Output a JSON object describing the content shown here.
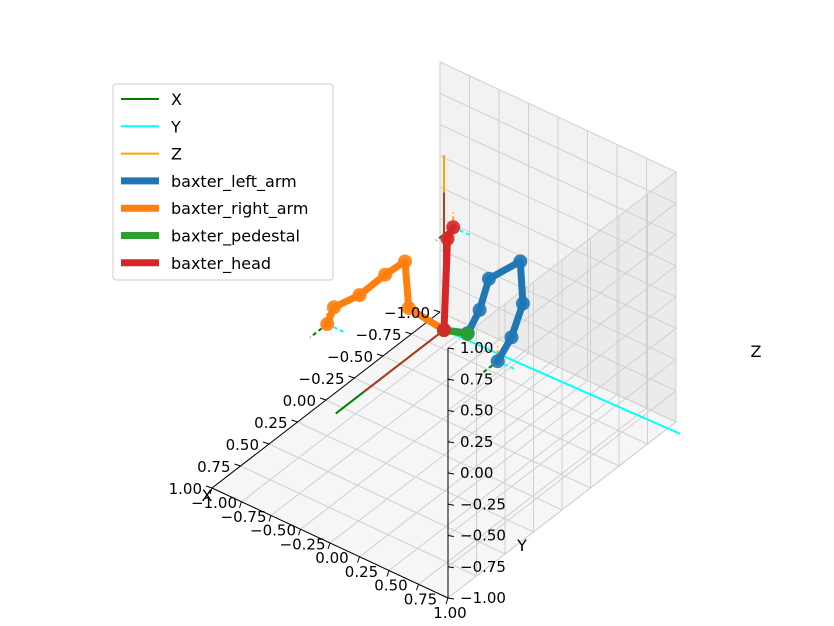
{
  "chart_data": {
    "type": "line",
    "projection": "3d",
    "title": "",
    "xlabel": "X",
    "ylabel": "Y",
    "zlabel": "Z",
    "xlim": [
      -1.0,
      1.0
    ],
    "ylim": [
      -1.0,
      1.0
    ],
    "zlim": [
      -1.0,
      1.0
    ],
    "grid": true,
    "legend_position": "upper-left",
    "x_ticks": [
      "−1.00",
      "−0.75",
      "−0.50",
      "−0.25",
      "0.00",
      "0.25",
      "0.50",
      "0.75",
      "1.00"
    ],
    "y_ticks": [
      "−1.00",
      "−0.75",
      "−0.50",
      "−0.25",
      "0.00",
      "0.25",
      "0.50",
      "0.75",
      "1.00"
    ],
    "z_ticks": [
      "−1.00",
      "−0.75",
      "−0.50",
      "−0.25",
      "0.00",
      "0.25",
      "0.50",
      "0.75",
      "1.00"
    ],
    "legend": [
      {
        "label": "X",
        "color": "#008000",
        "kind": "axis-line"
      },
      {
        "label": "Y",
        "color": "#00ffff",
        "kind": "axis-line"
      },
      {
        "label": "Z",
        "color": "#ffa500",
        "kind": "axis-line"
      },
      {
        "label": "baxter_left_arm",
        "color": "#1f77b4",
        "kind": "chain"
      },
      {
        "label": "baxter_right_arm",
        "color": "#ff7f0e",
        "kind": "chain"
      },
      {
        "label": "baxter_pedestal",
        "color": "#2ca02c",
        "kind": "chain"
      },
      {
        "label": "baxter_head",
        "color": "#d62728",
        "kind": "chain"
      }
    ],
    "series": [
      {
        "name": "baxter_left_arm",
        "color": "#1f77b4",
        "points": [
          {
            "x": 0.0,
            "y": 0.0,
            "z": 0.0
          },
          {
            "x": 0.05,
            "y": 0.25,
            "z": 0.12
          },
          {
            "x": 0.05,
            "y": 0.35,
            "z": 0.35
          },
          {
            "x": 0.02,
            "y": 0.4,
            "z": 0.6
          },
          {
            "x": -0.1,
            "y": 0.55,
            "z": 0.72
          },
          {
            "x": -0.05,
            "y": 0.62,
            "z": 0.45
          },
          {
            "x": 0.05,
            "y": 0.62,
            "z": 0.25
          },
          {
            "x": 0.15,
            "y": 0.6,
            "z": 0.12
          }
        ]
      },
      {
        "name": "baxter_right_arm",
        "color": "#ff7f0e",
        "points": [
          {
            "x": 0.0,
            "y": 0.0,
            "z": 0.0
          },
          {
            "x": 0.05,
            "y": -0.25,
            "z": 0.1
          },
          {
            "x": -0.02,
            "y": -0.35,
            "z": 0.38
          },
          {
            "x": 0.05,
            "y": -0.45,
            "z": 0.28
          },
          {
            "x": 0.12,
            "y": -0.6,
            "z": 0.1
          },
          {
            "x": 0.22,
            "y": -0.72,
            "z": 0.02
          },
          {
            "x": 0.3,
            "y": -0.7,
            "z": -0.05
          }
        ]
      },
      {
        "name": "baxter_pedestal",
        "color": "#2ca02c",
        "points": [
          {
            "x": 0.0,
            "y": 0.0,
            "z": 0.0
          },
          {
            "x": -0.05,
            "y": 0.15,
            "z": 0.0
          }
        ]
      },
      {
        "name": "baxter_head",
        "color": "#d62728",
        "points": [
          {
            "x": 0.0,
            "y": 0.0,
            "z": 0.0
          },
          {
            "x": -0.02,
            "y": 0.01,
            "z": 0.72
          },
          {
            "x": -0.05,
            "y": 0.03,
            "z": 0.8
          }
        ]
      }
    ]
  }
}
